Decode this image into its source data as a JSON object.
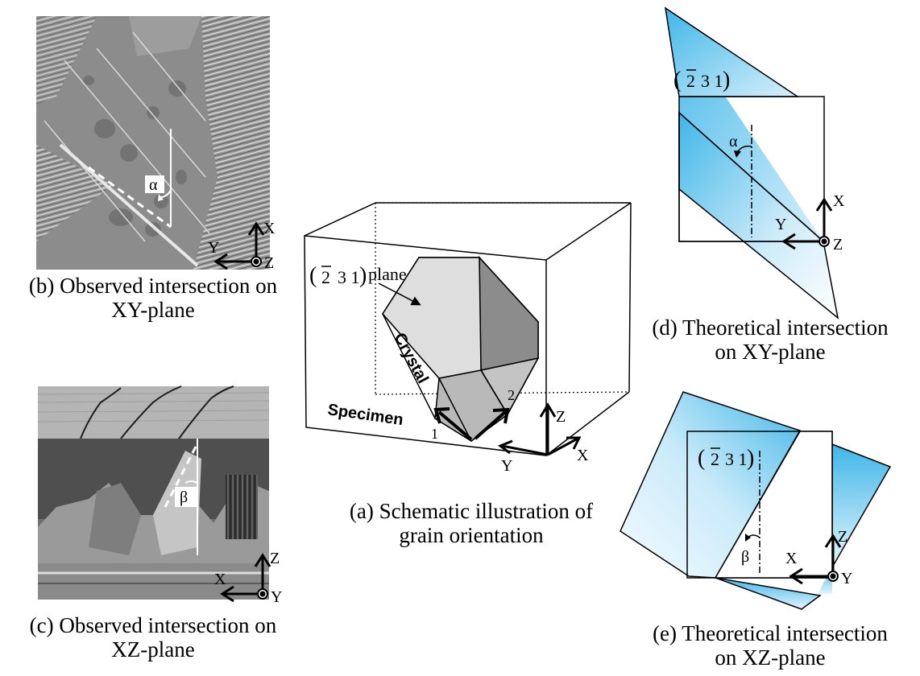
{
  "captions": {
    "a": {
      "line1": "(a) Schematic illustration of",
      "line2": "grain orientation"
    },
    "b": {
      "line1": "(b) Observed intersection on",
      "line2": "XY-plane"
    },
    "c": {
      "line1": "(c) Observed intersection on",
      "line2": "XZ-plane"
    },
    "d": {
      "line1": "(d) Theoretical intersection",
      "line2": "on XY-plane"
    },
    "e": {
      "line1": "(e) Theoretical intersection",
      "line2": "on XZ-plane"
    }
  },
  "labels": {
    "axis_x": "X",
    "axis_y": "Y",
    "axis_z": "Z",
    "alpha": "α",
    "beta": "β",
    "miller_bar": "2",
    "miller_rest": "3 1",
    "plane_word": "plane",
    "crystal": "Crystal",
    "specimen": "Specimen",
    "edge_1": "1",
    "edge_2": "2"
  },
  "colors": {
    "plane_blue": "#3fb6e8",
    "plane_light": "#f2faff",
    "micrograph_b": "#8c8c8c",
    "micrograph_c": "#6a6a6a"
  }
}
